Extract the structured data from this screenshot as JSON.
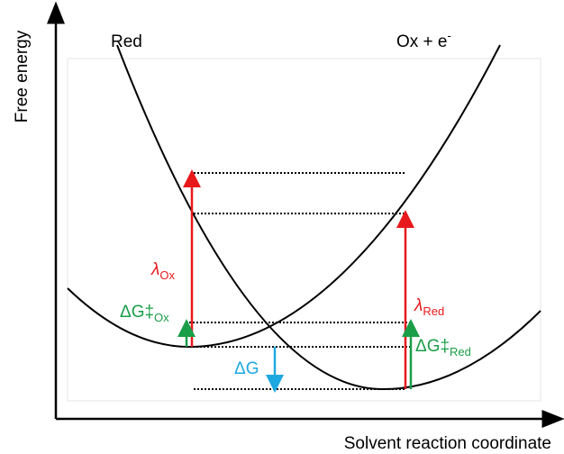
{
  "axes": {
    "y_label": "Free energy",
    "x_label": "Solvent reaction coordinate"
  },
  "curves": {
    "red": "Red",
    "ox": {
      "text": "Ox + e",
      "sup": "-"
    }
  },
  "labels": {
    "lambda_ox": {
      "symbol": "λ",
      "sub": "Ox"
    },
    "dg_ox": {
      "symbol": "ΔG‡",
      "sub": "Ox"
    },
    "lambda_red": {
      "symbol": "λ",
      "sub": "Red"
    },
    "dg_red": {
      "symbol": "ΔG‡",
      "sub": "Red"
    },
    "dg": "ΔG"
  }
}
